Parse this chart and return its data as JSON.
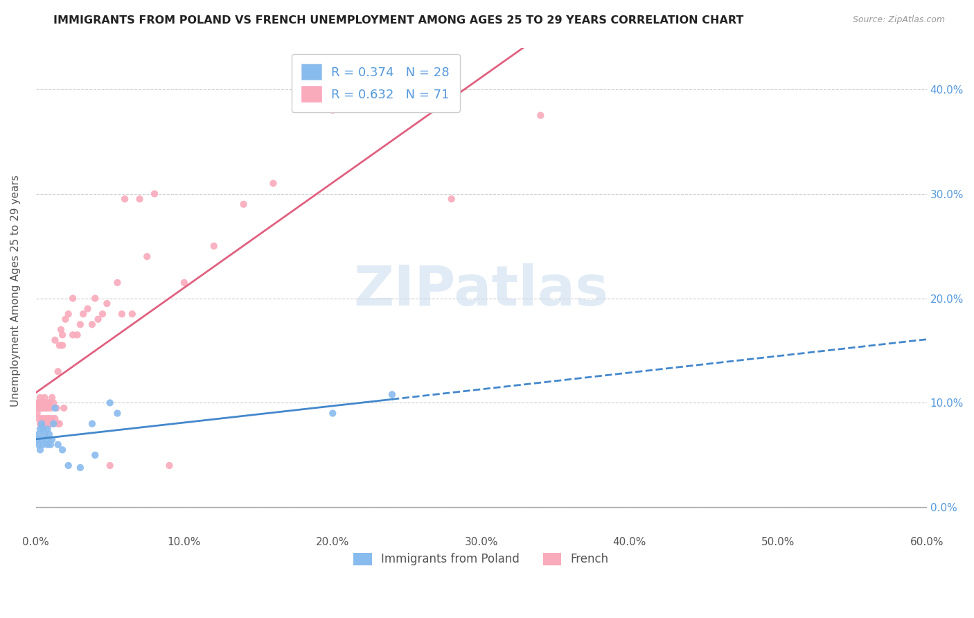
{
  "title": "IMMIGRANTS FROM POLAND VS FRENCH UNEMPLOYMENT AMONG AGES 25 TO 29 YEARS CORRELATION CHART",
  "source": "Source: ZipAtlas.com",
  "ylabel": "Unemployment Among Ages 25 to 29 years",
  "xlim": [
    0.0,
    0.6
  ],
  "ylim": [
    -0.025,
    0.44
  ],
  "R_poland": 0.374,
  "N_poland": 28,
  "R_french": 0.632,
  "N_french": 71,
  "color_poland": "#88bbee",
  "color_french": "#f9aabb",
  "color_poland_line": "#4488cc",
  "color_french_line": "#e06080",
  "legend_label_poland": "Immigrants from Poland",
  "legend_label_french": "French",
  "poland_x": [
    0.001,
    0.002,
    0.002,
    0.003,
    0.003,
    0.004,
    0.004,
    0.005,
    0.005,
    0.006,
    0.007,
    0.008,
    0.008,
    0.009,
    0.01,
    0.011,
    0.012,
    0.013,
    0.015,
    0.018,
    0.022,
    0.03,
    0.038,
    0.04,
    0.05,
    0.055,
    0.2,
    0.24
  ],
  "poland_y": [
    0.065,
    0.06,
    0.07,
    0.055,
    0.075,
    0.065,
    0.08,
    0.06,
    0.075,
    0.07,
    0.065,
    0.06,
    0.075,
    0.07,
    0.06,
    0.065,
    0.08,
    0.095,
    0.06,
    0.055,
    0.04,
    0.038,
    0.08,
    0.05,
    0.1,
    0.09,
    0.09,
    0.108
  ],
  "french_x": [
    0.001,
    0.001,
    0.002,
    0.002,
    0.002,
    0.003,
    0.003,
    0.003,
    0.004,
    0.004,
    0.004,
    0.005,
    0.005,
    0.005,
    0.006,
    0.006,
    0.006,
    0.007,
    0.007,
    0.007,
    0.008,
    0.008,
    0.008,
    0.009,
    0.009,
    0.01,
    0.01,
    0.011,
    0.011,
    0.012,
    0.012,
    0.013,
    0.013,
    0.014,
    0.015,
    0.015,
    0.016,
    0.016,
    0.017,
    0.018,
    0.018,
    0.019,
    0.02,
    0.022,
    0.025,
    0.025,
    0.028,
    0.03,
    0.032,
    0.035,
    0.038,
    0.04,
    0.042,
    0.045,
    0.048,
    0.05,
    0.055,
    0.058,
    0.06,
    0.065,
    0.07,
    0.075,
    0.08,
    0.09,
    0.1,
    0.12,
    0.14,
    0.16,
    0.2,
    0.28,
    0.34
  ],
  "french_y": [
    0.09,
    0.1,
    0.085,
    0.095,
    0.1,
    0.08,
    0.095,
    0.105,
    0.085,
    0.095,
    0.1,
    0.08,
    0.095,
    0.1,
    0.085,
    0.095,
    0.105,
    0.08,
    0.095,
    0.1,
    0.085,
    0.095,
    0.1,
    0.085,
    0.1,
    0.08,
    0.095,
    0.085,
    0.105,
    0.08,
    0.1,
    0.085,
    0.16,
    0.095,
    0.08,
    0.13,
    0.155,
    0.08,
    0.17,
    0.155,
    0.165,
    0.095,
    0.18,
    0.185,
    0.165,
    0.2,
    0.165,
    0.175,
    0.185,
    0.19,
    0.175,
    0.2,
    0.18,
    0.185,
    0.195,
    0.04,
    0.215,
    0.185,
    0.295,
    0.185,
    0.295,
    0.24,
    0.3,
    0.04,
    0.215,
    0.25,
    0.29,
    0.31,
    0.38,
    0.295,
    0.375
  ]
}
